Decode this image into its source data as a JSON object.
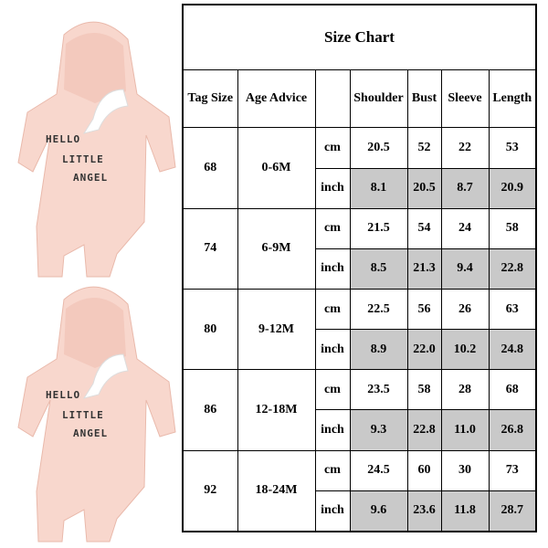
{
  "product_print": [
    "HELLO",
    "LITTLE",
    "ANGEL"
  ],
  "table": {
    "title": "Size Chart",
    "headers": [
      "Tag Size",
      "Age Advice"
    ],
    "measure_headers": [
      "Shoulder",
      "Bust",
      "Sleeve",
      "Length"
    ],
    "units": [
      "cm",
      "inch"
    ],
    "rows": [
      {
        "tag": "68",
        "age": "0-6M",
        "cm": [
          "20.5",
          "52",
          "22",
          "53"
        ],
        "inch": [
          "8.1",
          "20.5",
          "8.7",
          "20.9"
        ]
      },
      {
        "tag": "74",
        "age": "6-9M",
        "cm": [
          "21.5",
          "54",
          "24",
          "58"
        ],
        "inch": [
          "8.5",
          "21.3",
          "9.4",
          "22.8"
        ]
      },
      {
        "tag": "80",
        "age": "9-12M",
        "cm": [
          "22.5",
          "56",
          "26",
          "63"
        ],
        "inch": [
          "8.9",
          "22.0",
          "10.2",
          "24.8"
        ]
      },
      {
        "tag": "86",
        "age": "12-18M",
        "cm": [
          "23.5",
          "58",
          "28",
          "68"
        ],
        "inch": [
          "9.3",
          "22.8",
          "11.0",
          "26.8"
        ]
      },
      {
        "tag": "92",
        "age": "18-24M",
        "cm": [
          "24.5",
          "60",
          "30",
          "73"
        ],
        "inch": [
          "9.6",
          "23.6",
          "11.8",
          "28.7"
        ]
      }
    ]
  }
}
